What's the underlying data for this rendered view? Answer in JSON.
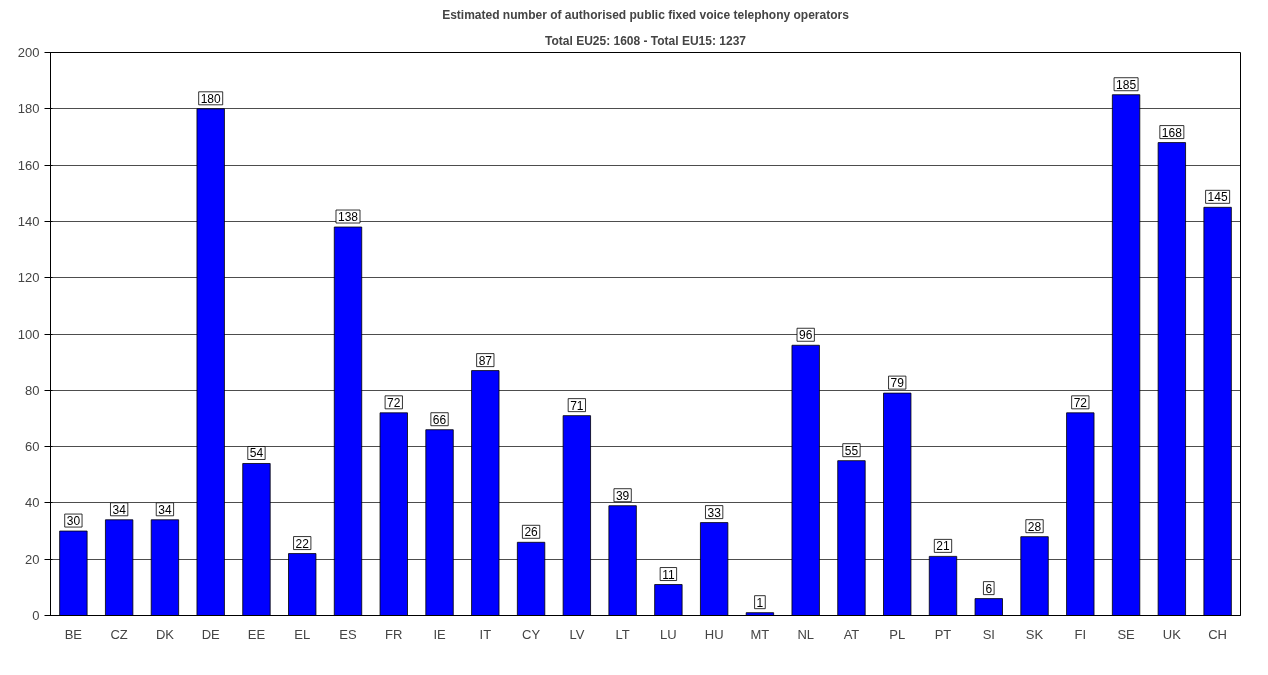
{
  "chart_data": {
    "type": "bar",
    "title": "Estimated number of authorised public fixed voice telephony operators",
    "subtitle": "Total EU25: 1608 - Total EU15: 1237",
    "categories": [
      "BE",
      "CZ",
      "DK",
      "DE",
      "EE",
      "EL",
      "ES",
      "FR",
      "IE",
      "IT",
      "CY",
      "LV",
      "LT",
      "LU",
      "HU",
      "MT",
      "NL",
      "AT",
      "PL",
      "PT",
      "SI",
      "SK",
      "FI",
      "SE",
      "UK",
      "CH"
    ],
    "values": [
      30,
      34,
      34,
      180,
      54,
      22,
      138,
      72,
      66,
      87,
      26,
      71,
      39,
      11,
      33,
      1,
      96,
      55,
      79,
      21,
      6,
      28,
      72,
      185,
      168,
      145
    ],
    "color": "#0000ff",
    "ylim": [
      0,
      200
    ],
    "yticks": [
      0,
      20,
      40,
      60,
      80,
      100,
      120,
      140,
      160,
      180,
      200
    ],
    "grid": "y",
    "data_labels": true
  }
}
